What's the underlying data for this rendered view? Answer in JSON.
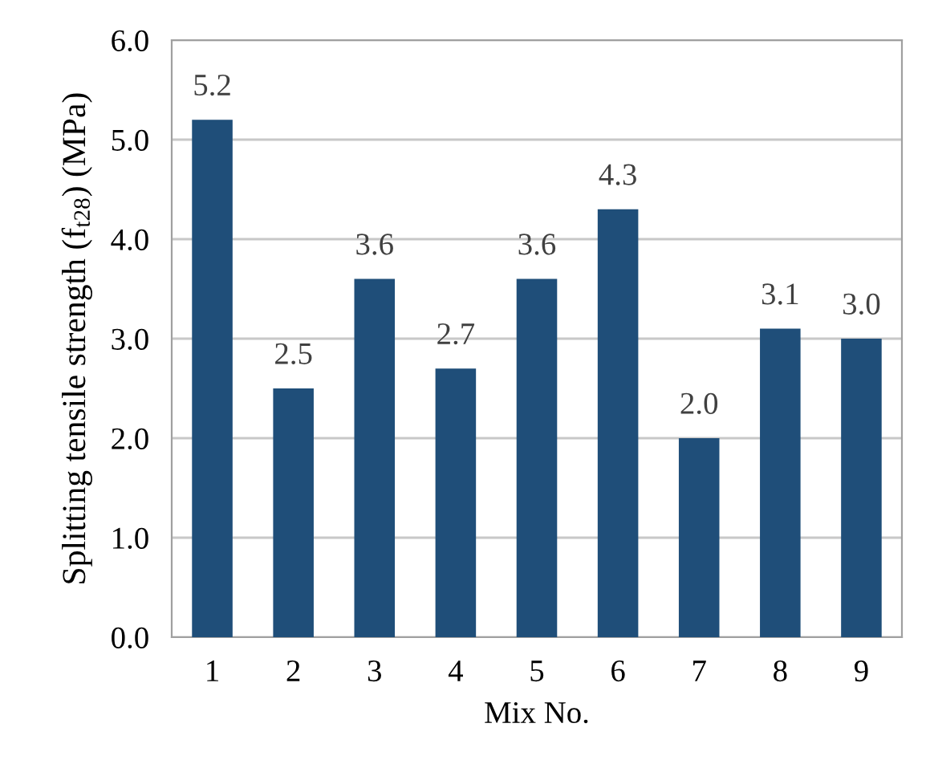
{
  "chart_data": {
    "type": "bar",
    "xlabel": "Mix No.",
    "ylabel": "Splitting tensile strength (f$_{t28}$) (MPa)",
    "categories": [
      "1",
      "2",
      "3",
      "4",
      "5",
      "6",
      "7",
      "8",
      "9"
    ],
    "values": [
      5.2,
      2.5,
      3.6,
      2.7,
      3.6,
      4.3,
      2.0,
      3.1,
      3.0
    ],
    "color": "#1f4e79",
    "ylim": [
      0,
      6
    ],
    "yticks": [
      {
        "value": 0,
        "label": "0.0"
      },
      {
        "value": 1,
        "label": "1.0"
      },
      {
        "value": 2,
        "label": "2.0"
      },
      {
        "value": 3,
        "label": "3.0"
      },
      {
        "value": 4,
        "label": "4.0"
      },
      {
        "value": 5,
        "label": "5.0"
      },
      {
        "value": 6,
        "label": "6.0"
      }
    ],
    "value_labels": [
      "5.2",
      "2.5",
      "3.6",
      "2.7",
      "3.6",
      "4.3",
      "2.0",
      "3.1",
      "3.0"
    ],
    "grid": "y"
  }
}
